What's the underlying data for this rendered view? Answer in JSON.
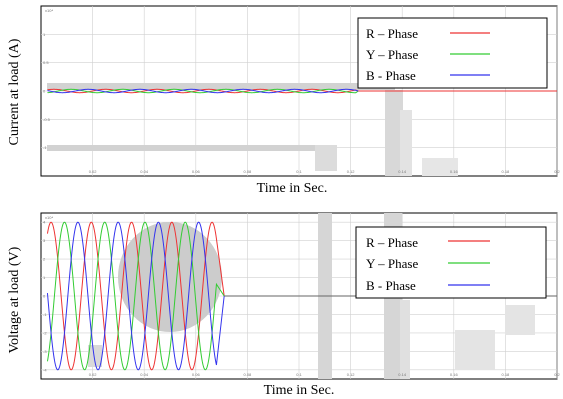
{
  "chart_data": [
    {
      "type": "line",
      "ylabel": "Current at load (A)",
      "xlabel": "Time in Sec.",
      "exponent_label": "x10⁴",
      "grid": true,
      "legend_position": "top-right",
      "x_ticks": [
        "0.02",
        "0.04",
        "0.06",
        "0.08",
        "0.1",
        "0.12",
        "0.14",
        "0.16",
        "0.18",
        "0.2"
      ],
      "y_ticks": [
        "1",
        "0.5",
        "0",
        "-0.5",
        "-1"
      ],
      "ylim": [
        -1.5,
        1.5
      ],
      "xlim": [
        0,
        0.2
      ],
      "signal": {
        "amplitude": 0.03,
        "period": 0.02,
        "end_time": 0.122,
        "after_value": 0
      },
      "series": [
        {
          "name": "R – Phase",
          "color": "#ee3333",
          "phase_deg": 0,
          "line_style": "solid"
        },
        {
          "name": "Y – Phase",
          "color": "#33cc33",
          "phase_deg": -120,
          "line_style": "solid"
        },
        {
          "name": "B -  Phase",
          "color": "#3333ee",
          "phase_deg": 120,
          "line_style": "solid"
        }
      ]
    },
    {
      "type": "line",
      "ylabel": "Voltage at load (V)",
      "xlabel": "Time in Sec.",
      "exponent_label": "x10⁴",
      "grid": true,
      "legend_position": "top-right",
      "x_ticks": [
        "0.02",
        "0.04",
        "0.06",
        "0.08",
        "0.1",
        "0.12",
        "0.14",
        "0.16",
        "0.18",
        "0.2"
      ],
      "y_ticks": [
        "4",
        "3",
        "2",
        "1",
        "0",
        "-1",
        "-2",
        "-3",
        "-4"
      ],
      "ylim": [
        -4.5,
        4.5
      ],
      "xlim": [
        0,
        0.2
      ],
      "signal": {
        "amplitude": 4,
        "period": 0.0156,
        "end_time": 0.068,
        "after_value": 0
      },
      "series": [
        {
          "name": "R – Phase",
          "color": "#ee3333",
          "phase_deg": 0,
          "line_style": "solid"
        },
        {
          "name": "Y – Phase",
          "color": "#33cc33",
          "phase_deg": -120,
          "line_style": "solid"
        },
        {
          "name": "B -  Phase",
          "color": "#3333ee",
          "phase_deg": 120,
          "line_style": "solid"
        }
      ]
    }
  ]
}
